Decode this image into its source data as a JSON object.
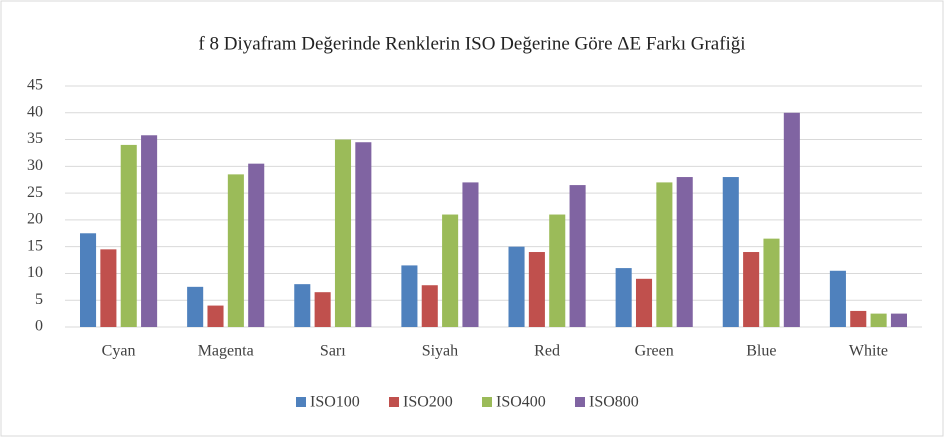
{
  "chart_data": {
    "type": "bar",
    "title": "f 8 Diyafram Değerinde Renklerin ISO Değerine Göre ΔE Farkı Grafiği",
    "categories": [
      "Cyan",
      "Magenta",
      "Sarı",
      "Siyah",
      "Red",
      "Green",
      "Blue",
      "White"
    ],
    "series": [
      {
        "name": "ISO100",
        "color": "#4f81bd",
        "values": [
          17.5,
          7.5,
          8,
          11.5,
          15,
          11,
          28,
          10.5
        ]
      },
      {
        "name": "ISO200",
        "color": "#c0504d",
        "values": [
          14.5,
          4,
          6.5,
          7.8,
          14,
          9,
          14,
          3
        ]
      },
      {
        "name": "ISO400",
        "color": "#9bbb59",
        "values": [
          34,
          28.5,
          35,
          21,
          21,
          27,
          16.5,
          2.5
        ]
      },
      {
        "name": "ISO800",
        "color": "#8064a2",
        "values": [
          35.8,
          30.5,
          34.5,
          27,
          26.5,
          28,
          40,
          2.5
        ]
      }
    ],
    "ylim": [
      0,
      45
    ],
    "yticks": [
      0,
      5,
      10,
      15,
      20,
      25,
      30,
      35,
      40,
      45
    ],
    "grid": true,
    "legend": "bottom"
  }
}
